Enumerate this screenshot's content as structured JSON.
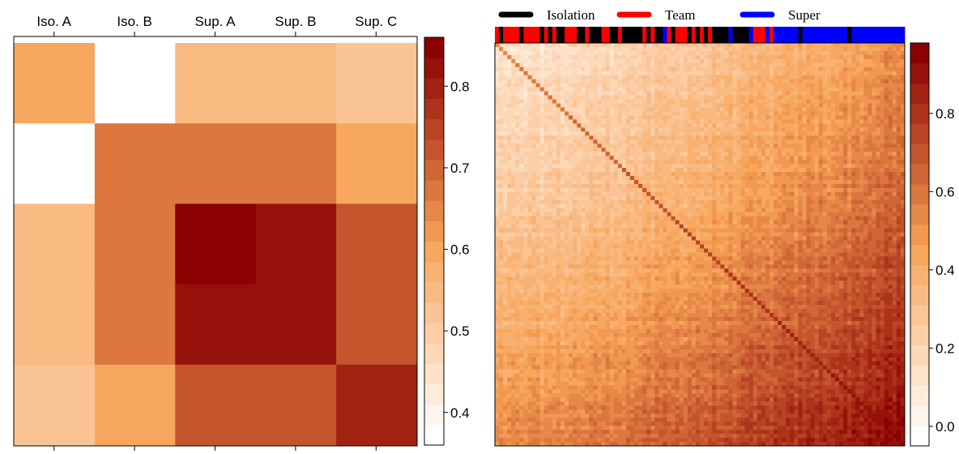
{
  "chart_data": [
    {
      "type": "heatmap",
      "title": "",
      "x_tick_labels": [
        "Iso. A",
        "Iso. B",
        "Sup. A",
        "Sup. B",
        "Sup. C"
      ],
      "y_order": [
        "Iso. A",
        "Iso. B",
        "Sup. A",
        "Sup. B",
        "Sup. C"
      ],
      "values": [
        [
          0.6,
          0.36,
          0.55,
          0.55,
          0.52
        ],
        [
          0.36,
          0.66,
          0.66,
          0.66,
          0.6
        ],
        [
          0.55,
          0.66,
          0.86,
          0.81,
          0.72
        ],
        [
          0.55,
          0.66,
          0.81,
          0.81,
          0.72
        ],
        [
          0.52,
          0.6,
          0.72,
          0.72,
          0.79
        ]
      ],
      "colorbar": {
        "range": [
          0.36,
          0.86
        ],
        "ticks": [
          0.4,
          0.5,
          0.6,
          0.7,
          0.8
        ],
        "tick_labels": [
          "0.4",
          "0.5",
          "0.6",
          "0.7",
          "0.8"
        ],
        "levels": 20
      },
      "colors": {
        "low": "#ffffff",
        "mid": "#f7a255",
        "high": "#8b0000"
      }
    },
    {
      "type": "heatmap",
      "title": "",
      "n": 100,
      "description_of_pattern": "correlation-style matrix, low in upper-left (isolation), high in lower-right (super), strong diagonal",
      "group_legend": [
        {
          "name": "Isolation",
          "color": "#000000"
        },
        {
          "name": "Team",
          "color": "#ff0000"
        },
        {
          "name": "Super",
          "color": "#0000ff"
        }
      ],
      "colorbar": {
        "range": [
          -0.05,
          0.98
        ],
        "ticks": [
          0.0,
          0.2,
          0.4,
          0.6,
          0.8
        ],
        "tick_labels": [
          "0.0",
          "0.2",
          "0.4",
          "0.6",
          "0.8"
        ],
        "levels": 20
      },
      "colors": {
        "low": "#ffffff",
        "mid": "#f7a255",
        "high": "#8b0000"
      }
    }
  ]
}
